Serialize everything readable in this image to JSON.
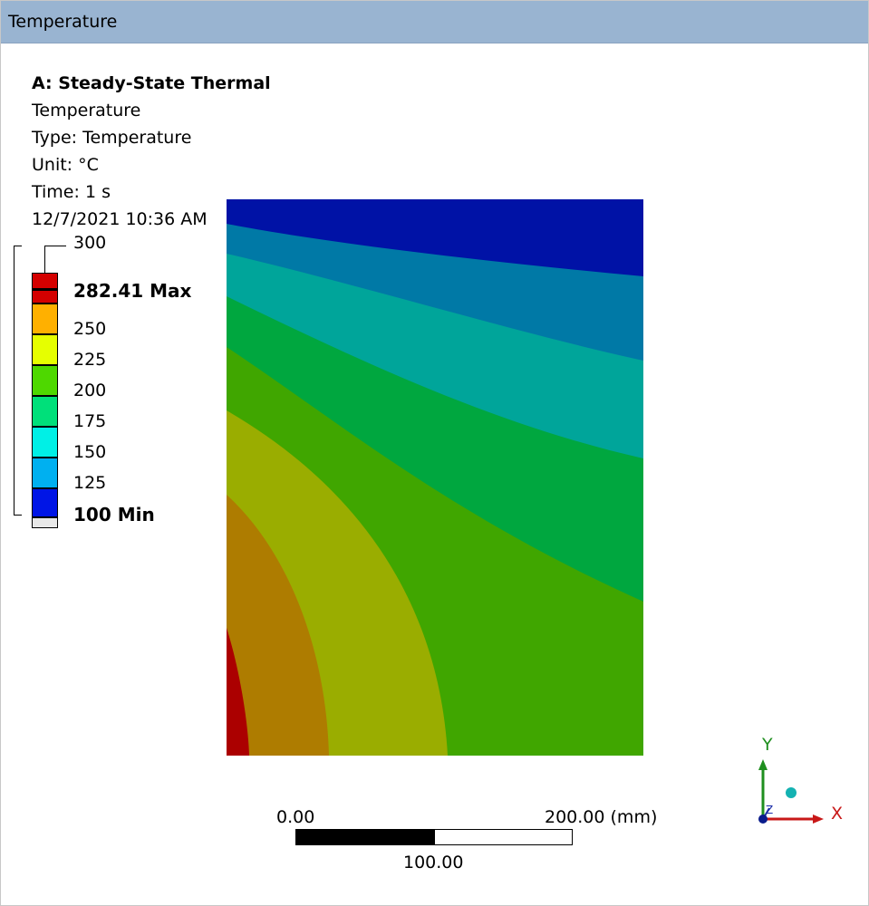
{
  "window": {
    "title": "Temperature"
  },
  "info": {
    "analysis": "A: Steady-State Thermal",
    "result": "Temperature",
    "type": "Type: Temperature",
    "unit": "Unit: °C",
    "time": "Time: 1 s",
    "datetime": "12/7/2021 10:36 AM"
  },
  "legend": {
    "top_value": "300",
    "max_label": "282.41 Max",
    "labels": [
      "250",
      "225",
      "200",
      "175",
      "150",
      "125"
    ],
    "min_label": "100 Min",
    "bands": [
      {
        "color": "#d40000"
      },
      {
        "color": "#ffb000"
      },
      {
        "color": "#e6ff00"
      },
      {
        "color": "#4ed800"
      },
      {
        "color": "#00e07a"
      },
      {
        "color": "#00f0e6"
      },
      {
        "color": "#00b0f0"
      },
      {
        "color": "#0015e6"
      },
      {
        "color": "#e8e8e8"
      }
    ]
  },
  "contour_colors": {
    "band_100_125": "#0012a6",
    "band_125_150": "#0079a6",
    "band_150_175": "#00a59a",
    "band_175_200": "#00a73f",
    "band_200_225": "#40a600",
    "band_225_250": "#9aad00",
    "band_250_275": "#ae7c00",
    "band_275_max": "#ab0000"
  },
  "scale": {
    "left": "0.00",
    "right": "200.00 (mm)",
    "mid": "100.00"
  },
  "triad": {
    "y": "Y",
    "x": "X",
    "z": "Z"
  }
}
